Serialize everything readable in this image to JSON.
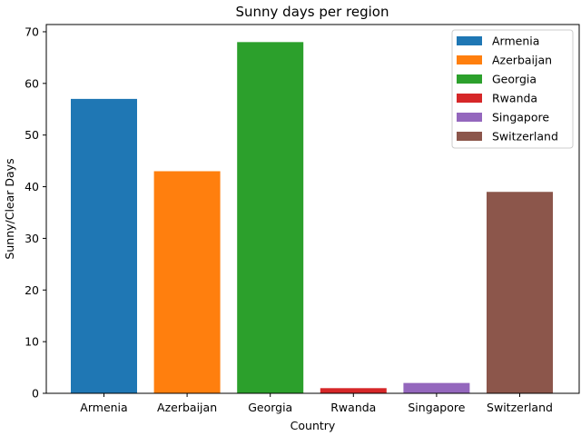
{
  "chart_data": {
    "type": "bar",
    "title": "Sunny days per region",
    "xlabel": "Country",
    "ylabel": "Sunny/Clear Days",
    "categories": [
      "Armenia",
      "Azerbaijan",
      "Georgia",
      "Rwanda",
      "Singapore",
      "Switzerland"
    ],
    "values": [
      57,
      43,
      68,
      1,
      2,
      39
    ],
    "colors": [
      "#1f77b4",
      "#ff7f0e",
      "#2ca02c",
      "#d62728",
      "#9467bd",
      "#8c564b"
    ],
    "ylim": [
      0,
      71.4
    ],
    "yticks": [
      0,
      10,
      20,
      30,
      40,
      50,
      60,
      70
    ],
    "grid": false,
    "legend": {
      "placement": "top-right",
      "entries": [
        "Armenia",
        "Azerbaijan",
        "Georgia",
        "Rwanda",
        "Singapore",
        "Switzerland"
      ]
    }
  }
}
